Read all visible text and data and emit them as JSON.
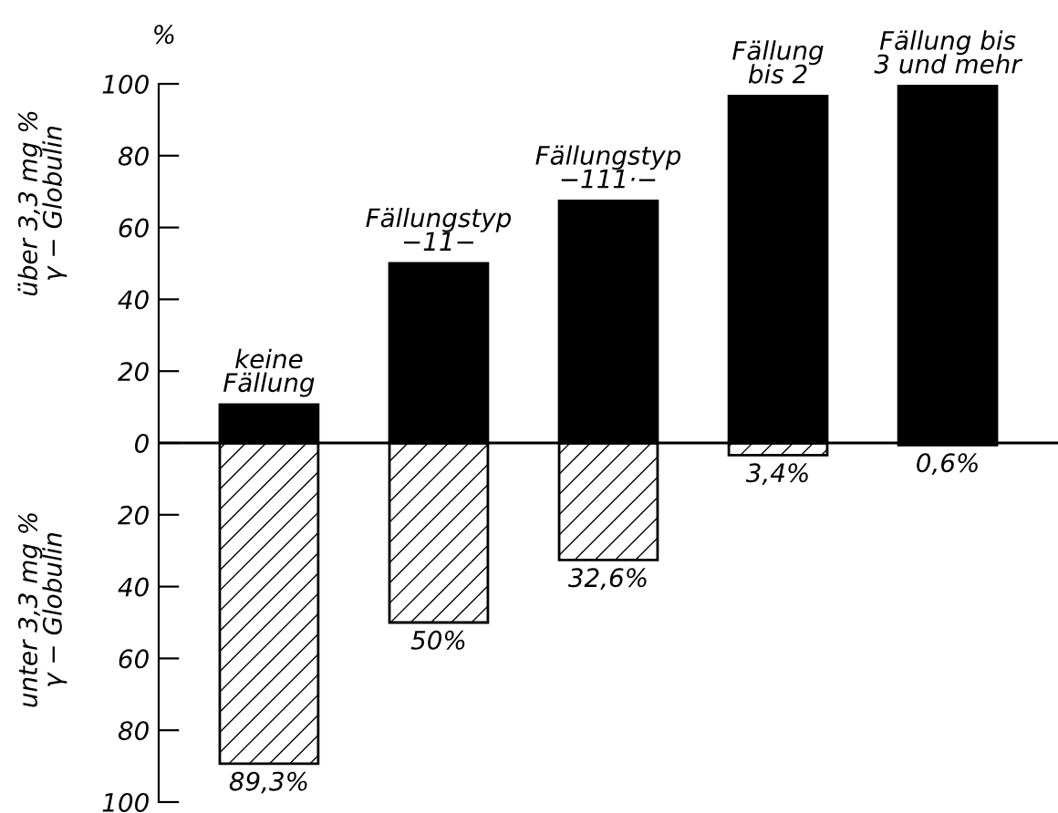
{
  "chart_data": {
    "type": "bar",
    "stacked": true,
    "categories": [
      "keine\nFällung",
      "Fällungstyp\n−11−",
      "Fällungstyp\n−111·−",
      "Fällung\nbis 2",
      "Fällung bis\n3 und mehr"
    ],
    "series": [
      {
        "color": "#000000",
        "values": [
          10.7,
          50,
          67.4,
          96.6,
          99.4
        ]
      },
      {
        "color": "#000000",
        "values": [
          -89.3,
          -50,
          -32.6,
          -3.4,
          -0.6
        ]
      }
    ],
    "ylim": [
      -100,
      100
    ],
    "yticks": [
      {
        "value": -100,
        "label": "100"
      },
      {
        "value": -80,
        "label": "80"
      },
      {
        "value": -60,
        "label": "60"
      },
      {
        "value": -40,
        "label": "40"
      },
      {
        "value": -20,
        "label": "20"
      },
      0,
      20,
      40,
      60,
      80,
      100
    ],
    "ref_lines": [
      {
        "axis": "y",
        "value": 0,
        "color": "#000000"
      }
    ],
    "annotations": [
      "über 3,3 mg %\nγ − Globulin",
      "unter 3,3 mg %\nγ − Globulin",
      "%",
      {
        "text": "89,3%",
        "x": "keine\nFällung",
        "y": -89.3
      },
      {
        "text": "50%",
        "x": "Fällungstyp\n−11−",
        "y": -50
      },
      {
        "text": "32,6%",
        "x": "Fällungstyp\n−111·−",
        "y": -32.6
      },
      {
        "text": "3,4%",
        "x": "Fällung\nbis 2",
        "y": -3.4
      },
      {
        "text": "0,6%",
        "x": "Fällung bis\n3 und mehr",
        "y": -0.6
      }
    ],
    "grid": false,
    "legend": false
  }
}
